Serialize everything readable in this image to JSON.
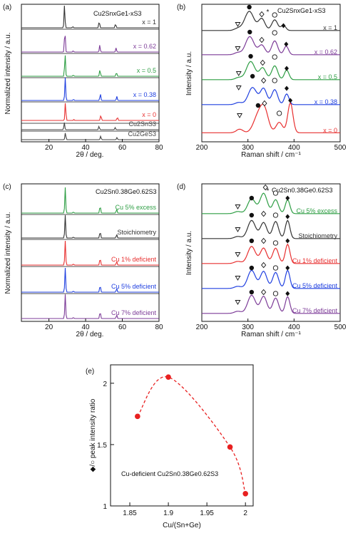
{
  "chart_data": [
    {
      "panel": "(a)",
      "type": "line",
      "title": "Cu2SnxGe1-xS3",
      "xlabel": "2θ / deg.",
      "ylabel": "Normalized intensity / a.u.",
      "xlim": [
        5,
        80
      ],
      "xticks": [
        "20",
        "40",
        "60",
        "80"
      ],
      "series": [
        {
          "name": "x = 1",
          "color": "#333333",
          "peaks": [
            [
              28.5,
              1.0
            ],
            [
              33.0,
              0.05
            ],
            [
              47.4,
              0.3
            ],
            [
              56.3,
              0.18
            ]
          ]
        },
        {
          "name": "x = 0.62",
          "color": "#7d3c98",
          "peaks": [
            [
              28.7,
              1.0
            ],
            [
              33.2,
              0.05
            ],
            [
              47.7,
              0.3
            ],
            [
              56.6,
              0.18
            ]
          ]
        },
        {
          "name": "x = 0.5",
          "color": "#2e9e44",
          "peaks": [
            [
              28.8,
              1.0
            ],
            [
              33.3,
              0.05
            ],
            [
              47.8,
              0.3
            ],
            [
              56.8,
              0.18
            ]
          ]
        },
        {
          "name": "x = 0.38",
          "color": "#2040e0",
          "peaks": [
            [
              28.9,
              1.0
            ],
            [
              33.4,
              0.05
            ],
            [
              48.0,
              0.3
            ],
            [
              57.0,
              0.18
            ]
          ]
        },
        {
          "name": "x = 0",
          "color": "#e83030",
          "peaks": [
            [
              29.0,
              1.0
            ],
            [
              33.6,
              0.05
            ],
            [
              48.3,
              0.3
            ],
            [
              57.3,
              0.18
            ]
          ]
        },
        {
          "name": "Cu2SnS3",
          "color": "#444444",
          "peaks": [
            [
              28.4,
              1.0
            ],
            [
              47.3,
              0.5
            ],
            [
              56.1,
              0.3
            ]
          ]
        },
        {
          "name": "Cu2GeS3",
          "color": "#444444",
          "peaks": [
            [
              29.0,
              1.0
            ],
            [
              48.2,
              0.5
            ],
            [
              57.1,
              0.3
            ]
          ]
        }
      ]
    },
    {
      "panel": "(b)",
      "type": "line",
      "title": "Cu2SnxGe1-xS3",
      "xlabel": "Raman shift / cm⁻¹",
      "ylabel": "Intensity / a.u.",
      "xlim": [
        200,
        500
      ],
      "xticks": [
        "200",
        "300",
        "400",
        "500"
      ],
      "series": [
        {
          "name": "x = 1",
          "color": "#333333"
        },
        {
          "name": "x = 0.62",
          "color": "#7d3c98"
        },
        {
          "name": "x = 0.5",
          "color": "#2e9e44"
        },
        {
          "name": "x = 0.38",
          "color": "#2040e0"
        },
        {
          "name": "x = 0",
          "color": "#e83030"
        }
      ]
    },
    {
      "panel": "(c)",
      "type": "line",
      "title": "Cu2Sn0.38Ge0.62S3",
      "xlabel": "2θ / deg.",
      "ylabel": "Normalized intensity / a.u.",
      "xlim": [
        5,
        80
      ],
      "xticks": [
        "20",
        "40",
        "60",
        "80"
      ],
      "series": [
        {
          "name": "Cu 5% excess",
          "color": "#2e9e44"
        },
        {
          "name": "Stoichiometry",
          "color": "#333333"
        },
        {
          "name": "Cu 1% deficient",
          "color": "#e83030"
        },
        {
          "name": "Cu 5% deficient",
          "color": "#2040e0"
        },
        {
          "name": "Cu 7% deficient",
          "color": "#7d3c98"
        }
      ]
    },
    {
      "panel": "(d)",
      "type": "line",
      "title": "Cu2Sn0.38Ge0.62S3",
      "xlabel": "Raman shift / cm⁻¹",
      "ylabel": "Intensity / a.u.",
      "xlim": [
        200,
        500
      ],
      "xticks": [
        "200",
        "300",
        "400",
        "500"
      ],
      "series": [
        {
          "name": "Cu 5% excess",
          "color": "#2e9e44"
        },
        {
          "name": "Stoichiometry",
          "color": "#333333"
        },
        {
          "name": "Cu 1% deficient",
          "color": "#e83030"
        },
        {
          "name": "Cu 5% deficient",
          "color": "#2040e0"
        },
        {
          "name": "Cu 7% deficient",
          "color": "#7d3c98"
        }
      ]
    },
    {
      "panel": "(e)",
      "type": "scatter",
      "annotation": "Cu-deficient Cu2Sn0.38Ge0.62S3",
      "xlabel": "Cu/(Sn+Ge)",
      "ylabel": "◆/○ peak intensity ratio",
      "xlim": [
        1.825,
        2.01
      ],
      "ylim": [
        1.0,
        2.15
      ],
      "xticks": [
        "1.85",
        "1.9",
        "1.95",
        "2"
      ],
      "yticks": [
        "1",
        "1.5",
        "2"
      ],
      "points": [
        {
          "x": 1.86,
          "y": 1.73
        },
        {
          "x": 1.9,
          "y": 2.05
        },
        {
          "x": 1.98,
          "y": 1.48
        },
        {
          "x": 2.0,
          "y": 1.1
        }
      ],
      "color": "#e82020"
    }
  ]
}
